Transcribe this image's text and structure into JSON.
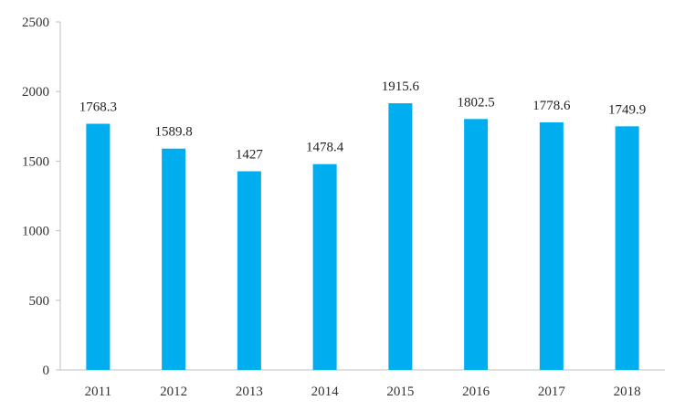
{
  "chart_data": {
    "type": "bar",
    "categories": [
      "2011",
      "2012",
      "2013",
      "2014",
      "2015",
      "2016",
      "2017",
      "2018"
    ],
    "values": [
      1768.3,
      1589.8,
      1427,
      1478.4,
      1915.6,
      1802.5,
      1778.6,
      1749.9
    ],
    "data_labels": [
      "1768.3",
      "1589.8",
      "1427",
      "1478.4",
      "1915.6",
      "1802.5",
      "1778.6",
      "1749.9"
    ],
    "y_ticks": [
      "0",
      "500",
      "1000",
      "1500",
      "2000",
      "2500"
    ],
    "ylim": [
      0,
      2500
    ],
    "title": "",
    "xlabel": "",
    "ylabel": "",
    "grid": false,
    "legend": "none",
    "colors": {
      "bar": "#00AEEF",
      "axis": "#BFBFBF",
      "text": "#333333"
    }
  }
}
